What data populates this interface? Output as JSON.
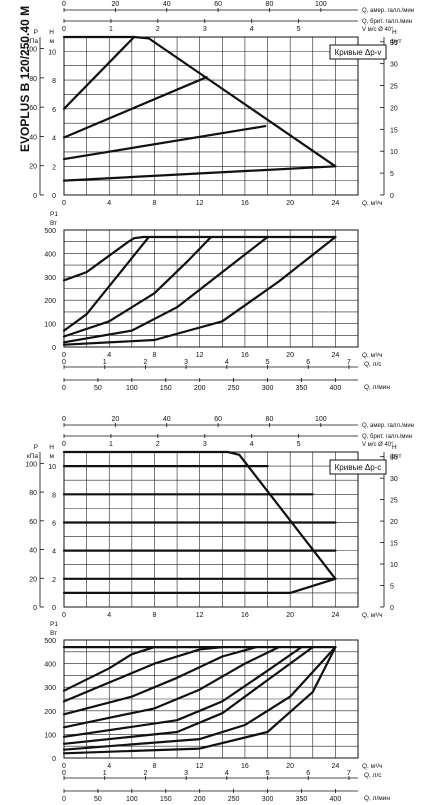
{
  "side_title": "EVOPLUS B 120/250.40 M",
  "chart_data": [
    {
      "id": "top-head",
      "type": "line",
      "title": "Кривые Δp-v",
      "top_axes": [
        {
          "label": "Q, амер. галл./мин",
          "ticks": [
            "0",
            "20",
            "40",
            "60",
            "80",
            "100"
          ]
        },
        {
          "label": "Q, брит. галл./мин",
          "ticks": [
            "0",
            "1",
            "2",
            "3",
            "4",
            "5"
          ]
        },
        {
          "label": "V м/с Ø 40°",
          "ticks": []
        }
      ],
      "xlabel": "Q, м³/ч",
      "x_ticks": [
        "0",
        "4",
        "8",
        "12",
        "16",
        "20",
        "24"
      ],
      "xlim": [
        0,
        26
      ],
      "ylabel": "H м",
      "ylim": [
        0,
        11
      ],
      "y_ticks": [
        "0",
        "2",
        "4",
        "6",
        "8",
        "10"
      ],
      "p_label": "P кПа",
      "p_ticks": [
        "0",
        "20",
        "40",
        "60",
        "80",
        "100"
      ],
      "ft_label": "H фут",
      "ft_ticks": [
        "0",
        "5",
        "10",
        "15",
        "20",
        "25",
        "30",
        "35"
      ],
      "series": [
        {
          "x": [
            0,
            6.2
          ],
          "y": [
            11,
            11
          ]
        },
        {
          "x": [
            6.2,
            7.5,
            24
          ],
          "y": [
            11,
            10.9,
            2
          ]
        },
        {
          "x": [
            0,
            6.2
          ],
          "y": [
            6,
            11
          ]
        },
        {
          "x": [
            0,
            12.6
          ],
          "y": [
            4,
            8.2
          ]
        },
        {
          "x": [
            0,
            17.8
          ],
          "y": [
            2.5,
            4.8
          ]
        },
        {
          "x": [
            0,
            24
          ],
          "y": [
            1,
            2
          ]
        }
      ]
    },
    {
      "id": "top-power",
      "type": "line",
      "xlabel": "Q, м³/ч",
      "x_ticks": [
        "0",
        "4",
        "8",
        "12",
        "16",
        "20",
        "24"
      ],
      "xlim": [
        0,
        26
      ],
      "ylabel": "P1 Вт",
      "ylim": [
        0,
        500
      ],
      "y_ticks": [
        "0",
        "100",
        "200",
        "300",
        "400",
        "500"
      ],
      "bottom_axes": [
        {
          "label": "Q, л/с",
          "ticks": [
            "0",
            "1",
            "2",
            "3",
            "4",
            "5",
            "6",
            "7"
          ]
        },
        {
          "label": "Q, л/мин",
          "ticks": [
            "0",
            "50",
            "100",
            "150",
            "200",
            "250",
            "300",
            "350",
            "400"
          ]
        }
      ],
      "series": [
        {
          "x": [
            0,
            2,
            4,
            5.7,
            6.2,
            7,
            24
          ],
          "y": [
            285,
            320,
            390,
            450,
            465,
            470,
            470
          ]
        },
        {
          "x": [
            0,
            2,
            4,
            6,
            7.5
          ],
          "y": [
            70,
            140,
            260,
            380,
            470
          ]
        },
        {
          "x": [
            0,
            4,
            8,
            11,
            13
          ],
          "y": [
            45,
            110,
            230,
            370,
            470
          ]
        },
        {
          "x": [
            0,
            6,
            10,
            14,
            18
          ],
          "y": [
            20,
            70,
            170,
            320,
            470
          ]
        },
        {
          "x": [
            0,
            8,
            14,
            19,
            24
          ],
          "y": [
            10,
            30,
            110,
            280,
            470
          ]
        }
      ]
    },
    {
      "id": "bottom-head",
      "type": "line",
      "title": "Кривые Δp-c",
      "top_axes": [
        {
          "label": "Q, амер. галл./мин",
          "ticks": [
            "0",
            "20",
            "40",
            "60",
            "80",
            "100"
          ]
        },
        {
          "label": "Q, брит. галл./мин",
          "ticks": [
            "0",
            "1",
            "2",
            "3",
            "4",
            "5"
          ]
        },
        {
          "label": "V м/с Ø 40°",
          "ticks": []
        }
      ],
      "xlabel": "Q, м³/ч",
      "x_ticks": [
        "0",
        "4",
        "8",
        "12",
        "16",
        "20",
        "24"
      ],
      "xlim": [
        0,
        26
      ],
      "ylabel": "H м",
      "ylim": [
        0,
        11
      ],
      "y_ticks": [
        "0",
        "2",
        "4",
        "6",
        "8",
        "10"
      ],
      "p_label": "P кПа",
      "p_ticks": [
        "0",
        "20",
        "40",
        "60",
        "80",
        "100"
      ],
      "ft_label": "H фут",
      "ft_ticks": [
        "0",
        "5",
        "10",
        "15",
        "20",
        "25",
        "30",
        "35"
      ],
      "series": [
        {
          "x": [
            0,
            14.5
          ],
          "y": [
            11,
            11
          ]
        },
        {
          "x": [
            14.5,
            15.5,
            24
          ],
          "y": [
            11,
            10.8,
            2
          ]
        },
        {
          "x": [
            0,
            18
          ],
          "y": [
            10,
            10
          ]
        },
        {
          "x": [
            0,
            22
          ],
          "y": [
            8,
            8
          ]
        },
        {
          "x": [
            0,
            24
          ],
          "y": [
            6,
            6
          ]
        },
        {
          "x": [
            0,
            24
          ],
          "y": [
            4,
            4
          ]
        },
        {
          "x": [
            0,
            24
          ],
          "y": [
            2,
            2
          ]
        },
        {
          "x": [
            0,
            20,
            24
          ],
          "y": [
            1,
            1,
            2
          ]
        }
      ]
    },
    {
      "id": "bottom-power",
      "type": "line",
      "xlabel": "Q, м³/ч",
      "x_ticks": [
        "0",
        "4",
        "8",
        "12",
        "16",
        "20",
        "24"
      ],
      "xlim": [
        0,
        26
      ],
      "ylabel": "P1 Вт",
      "ylim": [
        0,
        500
      ],
      "y_ticks": [
        "0",
        "100",
        "200",
        "300",
        "400",
        "500"
      ],
      "bottom_axes": [
        {
          "label": "Q, л/с",
          "ticks": [
            "0",
            "1",
            "2",
            "3",
            "4",
            "5",
            "6",
            "7"
          ]
        },
        {
          "label": "Q, л/мин",
          "ticks": [
            "0",
            "50",
            "100",
            "150",
            "200",
            "250",
            "300",
            "350",
            "400"
          ]
        }
      ],
      "series": [
        {
          "x": [
            0,
            4,
            6,
            8,
            10
          ],
          "y": [
            285,
            380,
            440,
            470,
            470
          ]
        },
        {
          "x": [
            0,
            4,
            8,
            12,
            14
          ],
          "y": [
            240,
            320,
            400,
            460,
            470
          ]
        },
        {
          "x": [
            0,
            6,
            10,
            14,
            17
          ],
          "y": [
            185,
            260,
            340,
            430,
            470
          ]
        },
        {
          "x": [
            0,
            8,
            12,
            16,
            19
          ],
          "y": [
            130,
            210,
            290,
            400,
            470
          ]
        },
        {
          "x": [
            0,
            10,
            14,
            18,
            21
          ],
          "y": [
            90,
            160,
            240,
            370,
            470
          ]
        },
        {
          "x": [
            0,
            10,
            14,
            18,
            22
          ],
          "y": [
            60,
            110,
            190,
            330,
            470
          ]
        },
        {
          "x": [
            0,
            12,
            16,
            20,
            24
          ],
          "y": [
            35,
            80,
            140,
            260,
            470
          ]
        },
        {
          "x": [
            0,
            12,
            18,
            22,
            24
          ],
          "y": [
            20,
            40,
            110,
            280,
            470
          ]
        },
        {
          "x": [
            0,
            20,
            24
          ],
          "y": [
            470,
            470,
            470
          ]
        }
      ]
    }
  ]
}
